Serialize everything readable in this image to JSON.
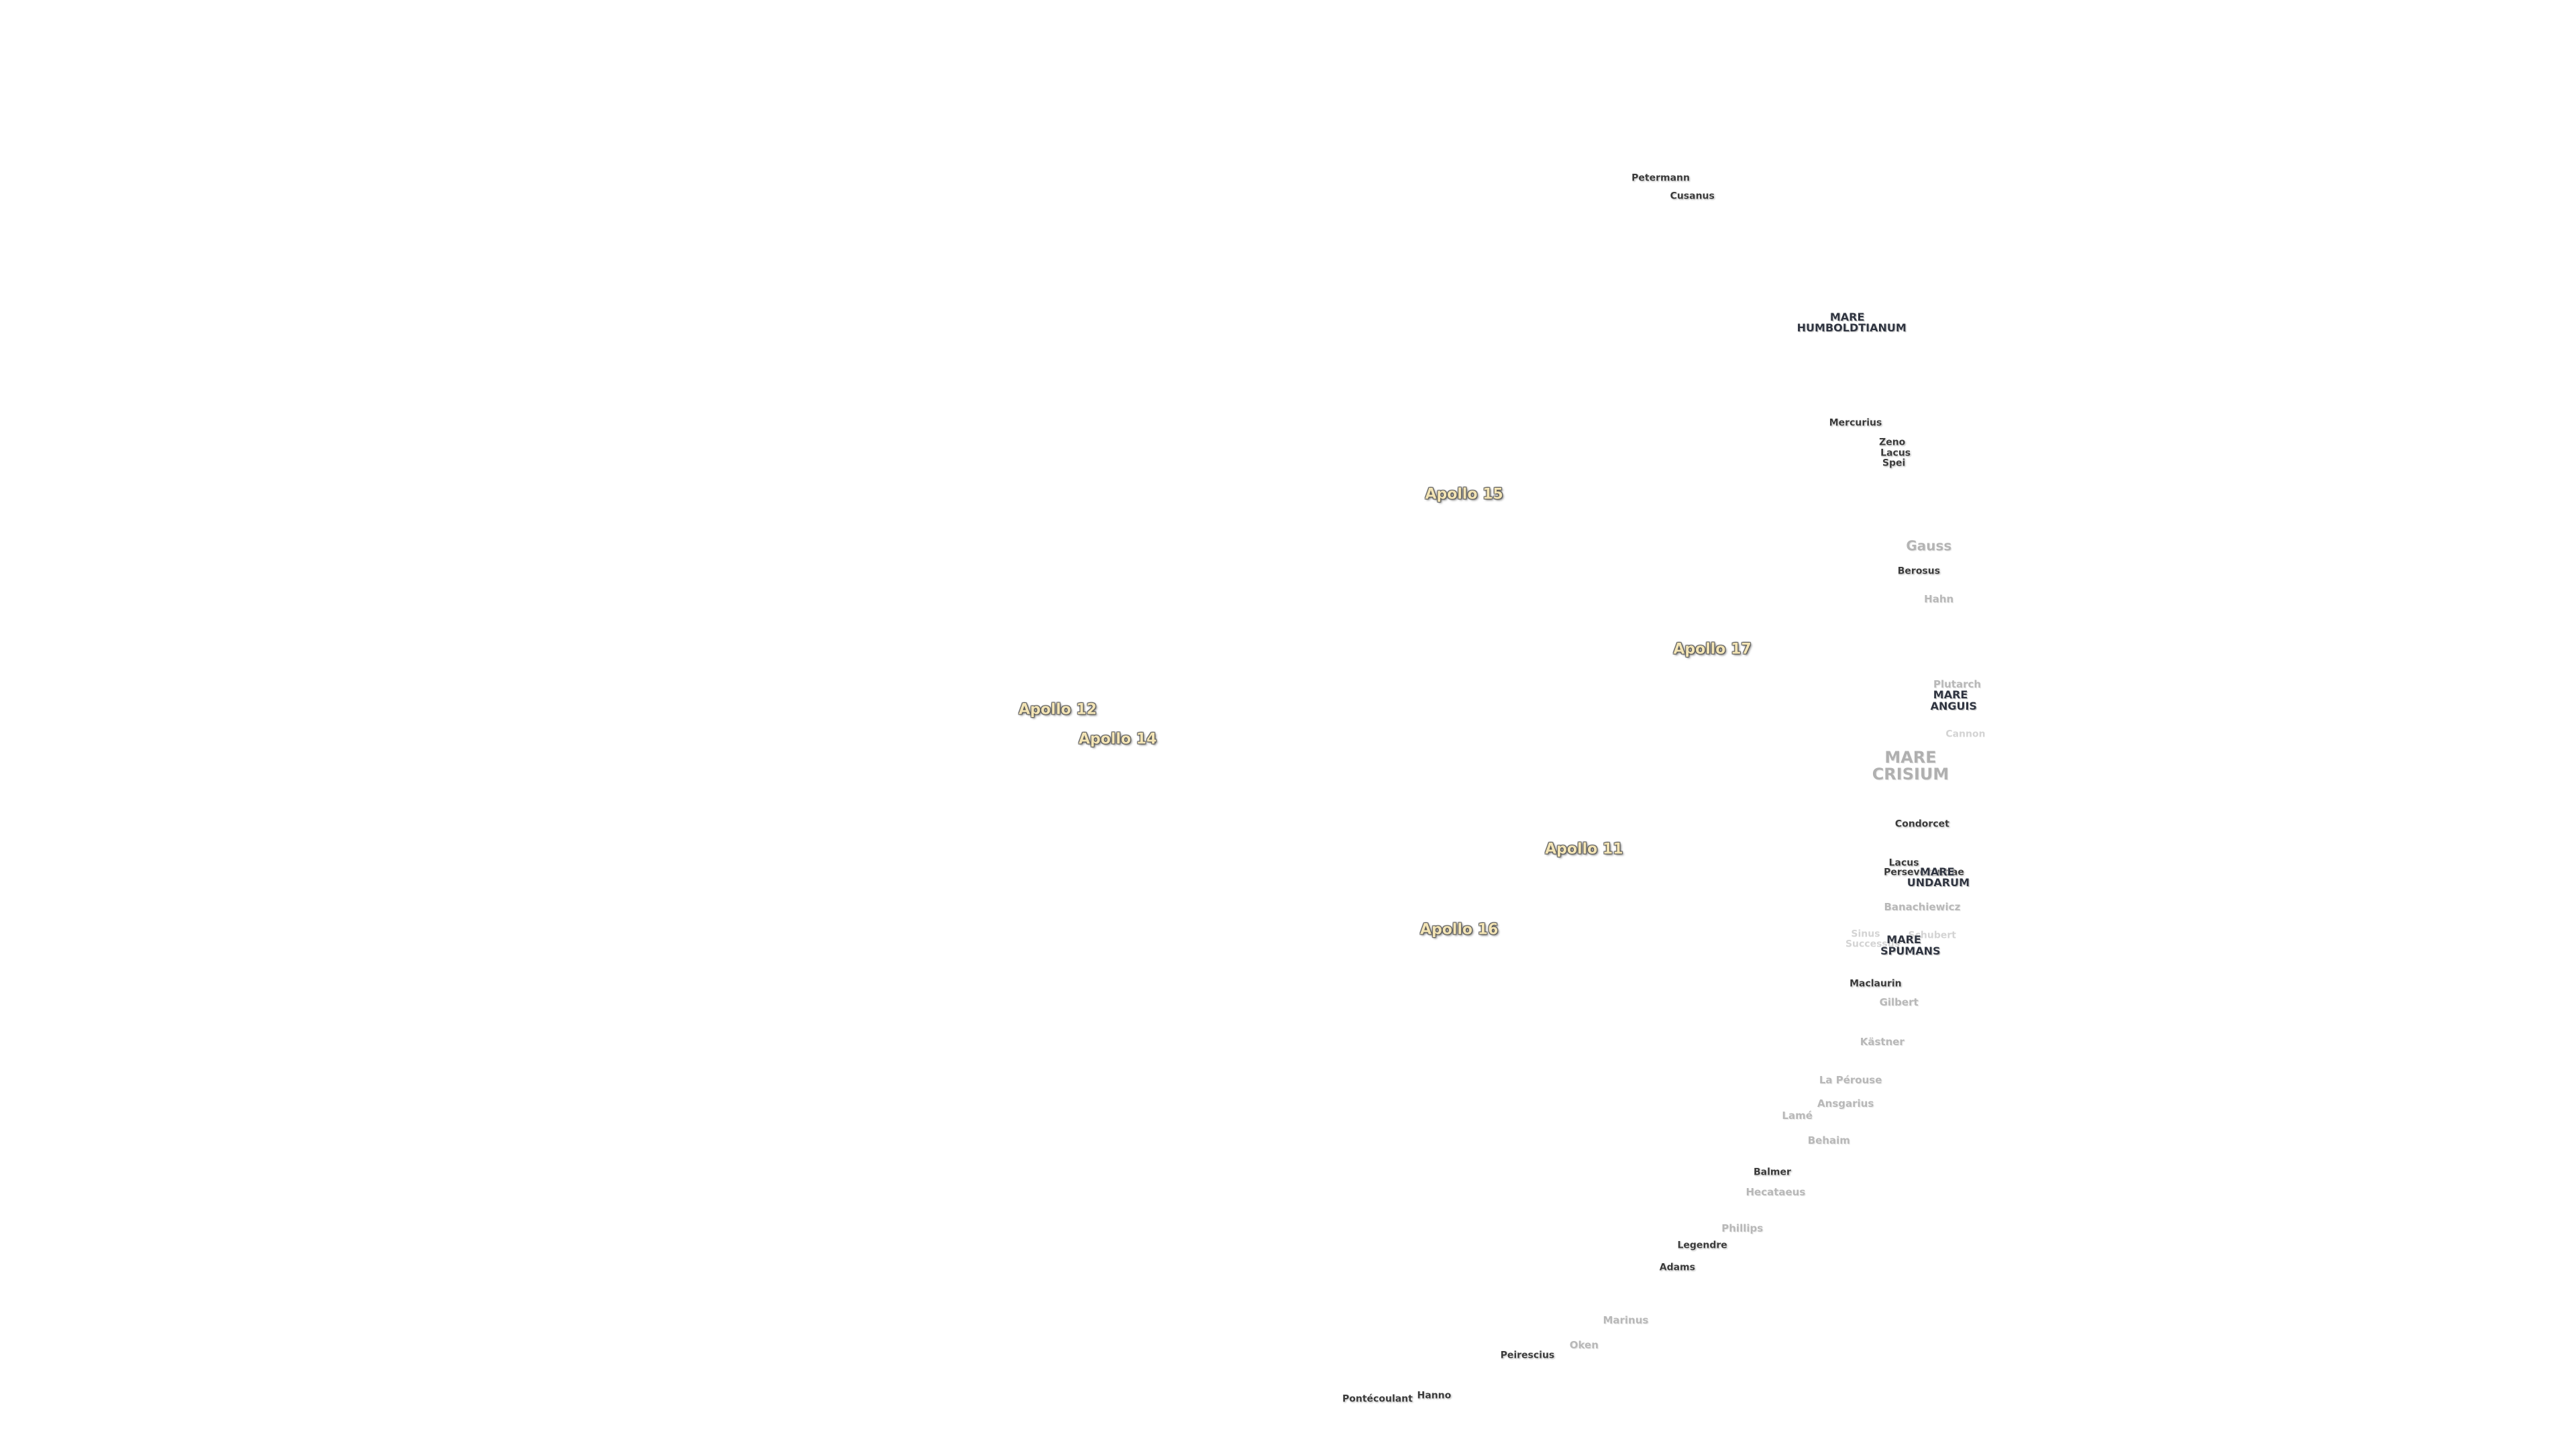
{
  "labels": [
    "Petermann",
    "Cusanus",
    "MARE HUMBOLDTIANUM",
    "Mercurius",
    "Zeno",
    "Lacus Spei",
    "Apollo 15",
    "Gauss",
    "Berosus",
    "Hahn",
    "Apollo 17",
    "Plutarch",
    "MARE ANGUIS",
    "Apollo 12",
    "Apollo 14",
    "Cannon",
    "MARE CRISIUM",
    "Condorcet",
    "Apollo 11",
    "Lacus Perseverantiae",
    "MARE UNDARUM",
    "Apollo 16",
    "Banachiewicz",
    "Sinus Successus",
    "Schubert",
    "MARE SPUMANS",
    "Maclaurin",
    "Gilbert",
    "Kästner",
    "La Pérouse",
    "Ansgarius",
    "Lamé",
    "Behaim",
    "Balmer",
    "Hecataeus",
    "Phillips",
    "Legendre",
    "Adams",
    "Marinus",
    "Oken",
    "Peirescius",
    "Hanno",
    "Pontécoulant"
  ]
}
